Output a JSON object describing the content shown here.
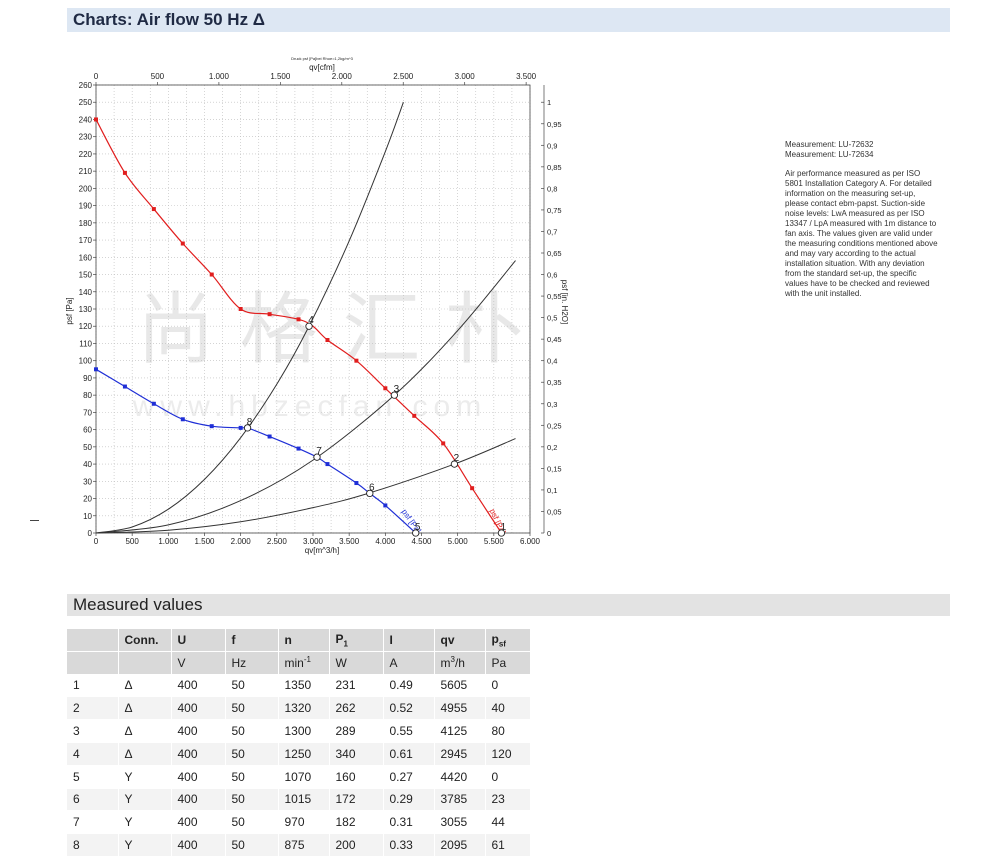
{
  "charts_header": "Charts: Air flow 50 Hz Δ",
  "measured_header": "Measured values",
  "side_notes": {
    "measurement_1": "Measurement: LU-72632",
    "measurement_2": "Measurement: LU-72634",
    "paragraph_lines": [
      "Air performance measured as per ISO",
      "5801 Installation Category A. For detailed",
      "information on the measuring set-up,",
      "please contact ebm-papst. Suction-side",
      "noise levels: LwA measured as per ISO",
      "13347 / LpA measured with 1m distance to",
      "fan axis. The values given are valid under",
      "the measuring conditions mentioned above",
      "and may vary according to the actual",
      "installation situation. With any deviation",
      "from the standard set-up, the specific",
      "values have to be checked and reviewed",
      "with the unit installed."
    ]
  },
  "chart_data": {
    "type": "line",
    "top_title": "Druck psf [Pa]bei Rhoe=1,2kg/m^3",
    "top_axis_label": "qv[cfm]",
    "top_ticks": [
      "0",
      "500",
      "1.000",
      "1.500",
      "2.000",
      "2.500",
      "3.000",
      "3.500"
    ],
    "top_tick_values": [
      0,
      500,
      1000,
      1500,
      2000,
      2500,
      3000,
      3500
    ],
    "xlabel": "qv[m^3/h]",
    "x_ticks": [
      "0",
      "500",
      "1.000",
      "1.500",
      "2.000",
      "2.500",
      "3.000",
      "3.500",
      "4.000",
      "4.500",
      "5.000",
      "5.500",
      "6.000"
    ],
    "xlim": [
      0,
      6000
    ],
    "ylabel": "psf [Pa]",
    "ylim": [
      0,
      260
    ],
    "y_ticks": [
      "0",
      "10",
      "20",
      "30",
      "40",
      "50",
      "60",
      "70",
      "80",
      "90",
      "100",
      "110",
      "120",
      "130",
      "140",
      "150",
      "160",
      "170",
      "180",
      "190",
      "200",
      "210",
      "220",
      "230",
      "240",
      "250",
      "260"
    ],
    "right_axis_label": "psf [in. H2O]",
    "right_ticks": [
      "0",
      "0,05",
      "0,1",
      "0,15",
      "0,2",
      "0,25",
      "0,3",
      "0,35",
      "0,4",
      "0,45",
      "0,5",
      "0,55",
      "0,6",
      "0,65",
      "0,7",
      "0,75",
      "0,8",
      "0,85",
      "0,9",
      "0,95",
      "1"
    ],
    "right_ylim": [
      0,
      1.04
    ],
    "grid": true,
    "series": [
      {
        "label": "psf [Pa]",
        "color": "#e11e1e",
        "x": [
          0,
          400,
          800,
          1200,
          1600,
          2000,
          2400,
          2800,
          3000,
          3200,
          3600,
          4000,
          4400,
          4800,
          5200,
          5605
        ],
        "y": [
          240,
          209,
          188,
          168,
          150,
          130,
          127,
          124,
          120,
          112,
          100,
          84,
          68,
          52,
          26,
          0
        ],
        "markers": [
          [
            0,
            240
          ],
          [
            400,
            209
          ],
          [
            800,
            188
          ],
          [
            1200,
            168
          ],
          [
            1600,
            150
          ],
          [
            2000,
            130
          ],
          [
            2400,
            127
          ],
          [
            2800,
            124
          ],
          [
            3200,
            112
          ],
          [
            3600,
            100
          ],
          [
            4000,
            84
          ],
          [
            4400,
            68
          ],
          [
            4800,
            52
          ],
          [
            5200,
            26
          ],
          [
            5605,
            0
          ]
        ]
      },
      {
        "label": "psf [Pa]",
        "color": "#1f2fd6",
        "x": [
          0,
          400,
          800,
          1200,
          1600,
          2000,
          2095,
          2400,
          2800,
          3055,
          3200,
          3600,
          3785,
          4000,
          4420
        ],
        "y": [
          95,
          85,
          75,
          66,
          62,
          61,
          61,
          56,
          49,
          44,
          40,
          29,
          23,
          16,
          0
        ],
        "markers": [
          [
            0,
            95
          ],
          [
            400,
            85
          ],
          [
            800,
            75
          ],
          [
            1200,
            66
          ],
          [
            1600,
            62
          ],
          [
            2000,
            61
          ],
          [
            2400,
            56
          ],
          [
            2800,
            49
          ],
          [
            3200,
            40
          ],
          [
            3600,
            29
          ],
          [
            4000,
            16
          ],
          [
            4420,
            0
          ]
        ]
      },
      {
        "label": "system curve 4/8",
        "color": "#333333",
        "x": [
          0,
          500,
          1000,
          1500,
          2000,
          2500,
          2945,
          3500,
          4000,
          4250
        ],
        "y": [
          0,
          3.5,
          13.8,
          31.1,
          55.3,
          86.4,
          120,
          169.5,
          221.4,
          250
        ],
        "markers": []
      },
      {
        "label": "system curve 3/7",
        "color": "#333333",
        "x": [
          0,
          1000,
          2000,
          3000,
          4125,
          5000,
          5800
        ],
        "y": [
          0,
          4.7,
          18.8,
          42.3,
          80,
          117.5,
          158.1
        ],
        "markers": []
      },
      {
        "label": "system curve 2/6",
        "color": "#333333",
        "x": [
          0,
          1000,
          2000,
          3000,
          3785,
          4955,
          5800
        ],
        "y": [
          0,
          1.6,
          6.5,
          14.7,
          23.3,
          40,
          54.8
        ],
        "markers": []
      }
    ],
    "operating_points": [
      {
        "label": "1",
        "x": 5605,
        "y": 0
      },
      {
        "label": "2",
        "x": 4955,
        "y": 40
      },
      {
        "label": "3",
        "x": 4125,
        "y": 80
      },
      {
        "label": "4",
        "x": 2945,
        "y": 120
      },
      {
        "label": "5",
        "x": 4420,
        "y": 0
      },
      {
        "label": "6",
        "x": 3785,
        "y": 23
      },
      {
        "label": "7",
        "x": 3055,
        "y": 44
      },
      {
        "label": "8",
        "x": 2095,
        "y": 61
      }
    ],
    "watermark_cn": "尚 格 汇 朴",
    "watermark_url": "www.hbzecfan.com"
  },
  "table": {
    "headers": [
      "",
      "Conn.",
      "U",
      "f",
      "n",
      "P1",
      "I",
      "qv",
      "psf"
    ],
    "units": [
      "",
      "",
      "V",
      "Hz",
      "min-1",
      "W",
      "A",
      "m3/h",
      "Pa"
    ],
    "rows": [
      [
        "1",
        "Δ",
        "400",
        "50",
        "1350",
        "231",
        "0.49",
        "5605",
        "0"
      ],
      [
        "2",
        "Δ",
        "400",
        "50",
        "1320",
        "262",
        "0.52",
        "4955",
        "40"
      ],
      [
        "3",
        "Δ",
        "400",
        "50",
        "1300",
        "289",
        "0.55",
        "4125",
        "80"
      ],
      [
        "4",
        "Δ",
        "400",
        "50",
        "1250",
        "340",
        "0.61",
        "2945",
        "120"
      ],
      [
        "5",
        "Y",
        "400",
        "50",
        "1070",
        "160",
        "0.27",
        "4420",
        "0"
      ],
      [
        "6",
        "Y",
        "400",
        "50",
        "1015",
        "172",
        "0.29",
        "3785",
        "23"
      ],
      [
        "7",
        "Y",
        "400",
        "50",
        "970",
        "182",
        "0.31",
        "3055",
        "44"
      ],
      [
        "8",
        "Y",
        "400",
        "50",
        "875",
        "200",
        "0.33",
        "2095",
        "61"
      ]
    ]
  }
}
